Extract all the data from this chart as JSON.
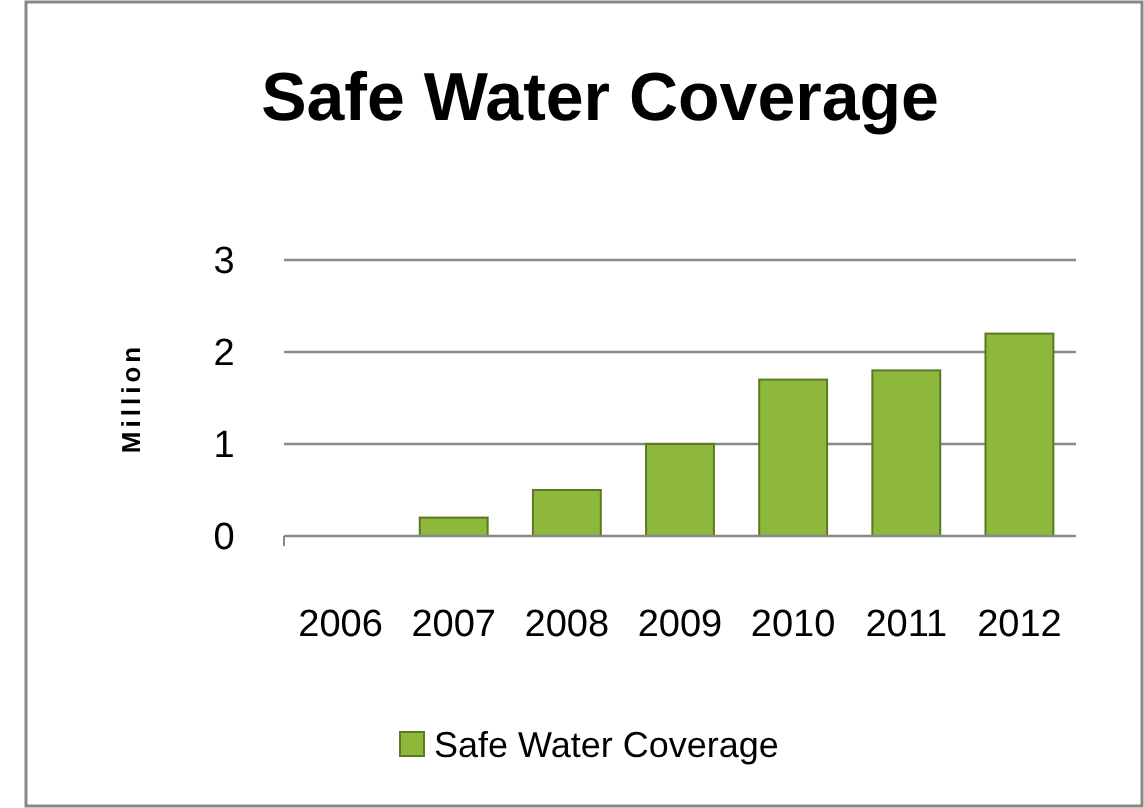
{
  "chart_data": {
    "type": "bar",
    "title": "Safe Water Coverage",
    "ylabel": "Million",
    "categories": [
      "2006",
      "2007",
      "2008",
      "2009",
      "2010",
      "2011",
      "2012"
    ],
    "series": [
      {
        "name": "Safe Water Coverage",
        "color": "#8db83c",
        "values": [
          0,
          0.2,
          0.5,
          1.0,
          1.7,
          1.8,
          2.2
        ]
      }
    ],
    "ylim": [
      0,
      3
    ],
    "yticks": [
      0,
      1,
      2,
      3
    ],
    "grid": "y",
    "legend": "bottom"
  }
}
